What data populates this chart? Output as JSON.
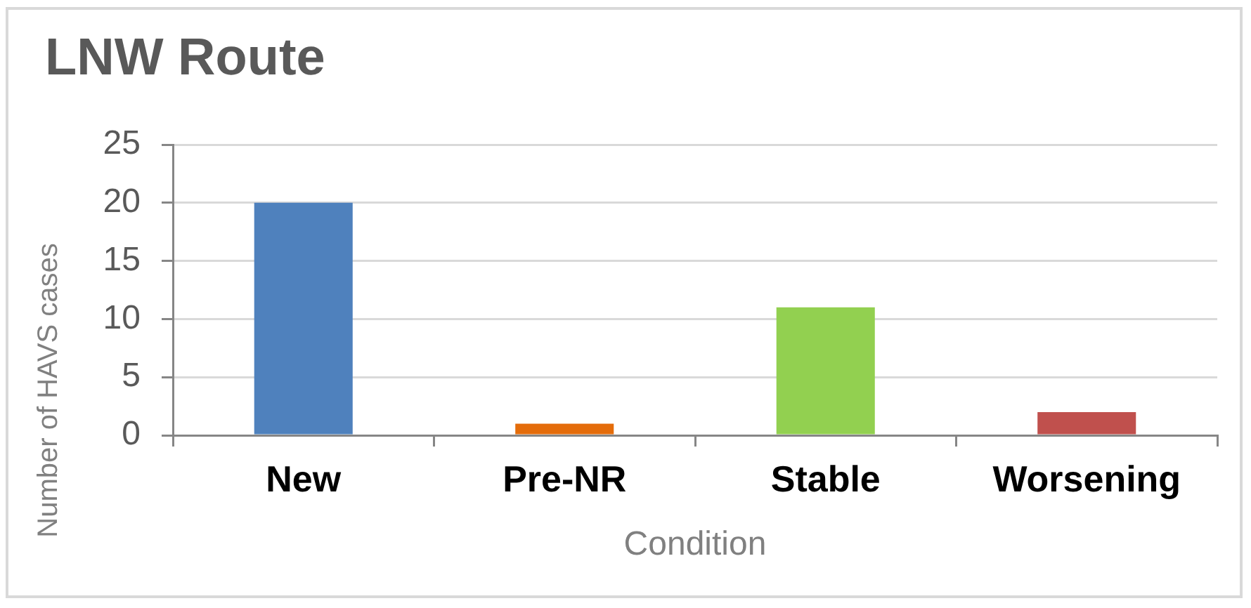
{
  "chart_data": {
    "type": "bar",
    "title": "LNW Route",
    "xlabel": "Condition",
    "ylabel": "Number of HAVS cases",
    "categories": [
      "New",
      "Pre-NR",
      "Stable",
      "Worsening"
    ],
    "values": [
      20,
      1,
      11,
      2
    ],
    "colors": [
      "#4f81bd",
      "#e46c0a",
      "#92d050",
      "#c0504d"
    ],
    "ylim": [
      0,
      25
    ],
    "yticks": [
      0,
      5,
      10,
      15,
      20,
      25
    ],
    "grid": "y"
  }
}
